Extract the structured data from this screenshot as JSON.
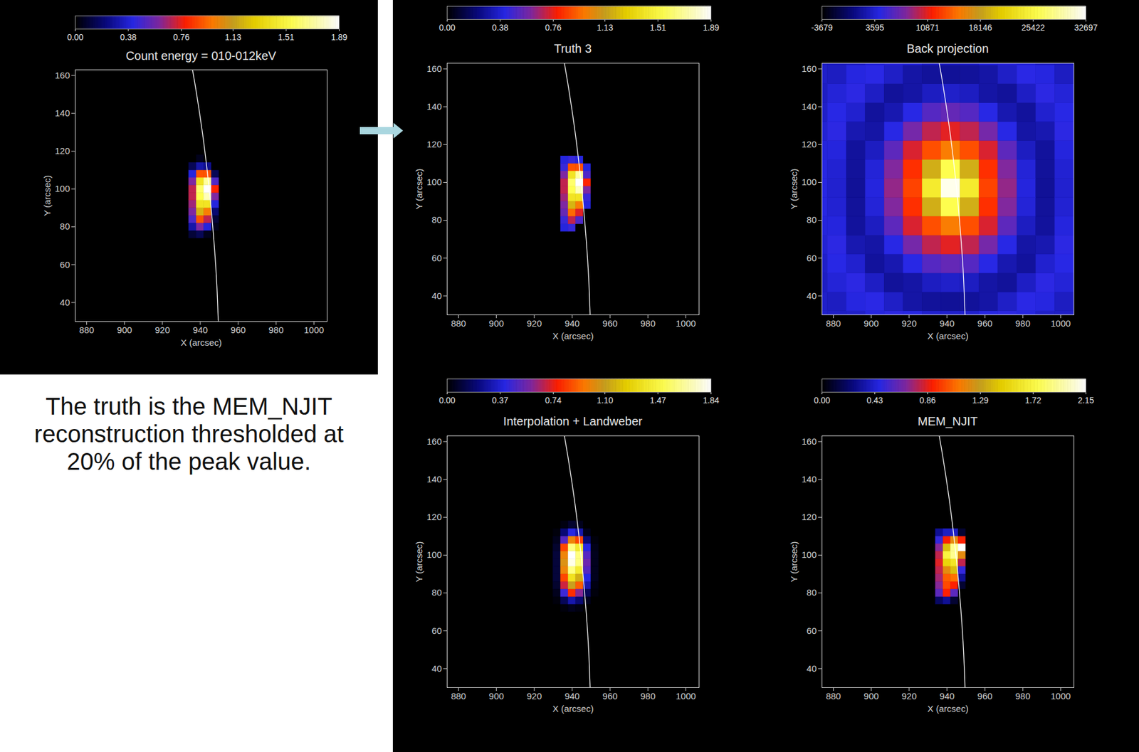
{
  "annotation": "The truth is the MEM_NJIT reconstruction thresholded at 20% of the peak value.",
  "chart_data": [
    {
      "type": "heatmap",
      "title": "Count energy = 010-012keV",
      "x_label": "X (arcsec)",
      "y_label": "Y (arcsec)",
      "xlim": [
        874,
        1007
      ],
      "ylim": [
        30,
        163
      ],
      "xticks": [
        880,
        900,
        920,
        940,
        960,
        980,
        1000
      ],
      "yticks": [
        40,
        60,
        80,
        100,
        120,
        140,
        160
      ],
      "colorbar": {
        "range": [
          0,
          1.89
        ],
        "ticks": [
          {
            "value": 0,
            "label": "0.00"
          },
          0.38,
          0.76,
          1.13,
          1.51,
          1.89
        ]
      },
      "limb": {
        "x": [
          949.5,
          948.7,
          947.4,
          945.7,
          943.6,
          941.1,
          938.1,
          935.9
        ],
        "y": [
          30,
          50,
          70,
          90,
          110,
          130,
          150,
          163
        ]
      },
      "x": [
        932,
        936,
        940,
        944,
        948,
        952
      ],
      "y": [
        72,
        76,
        80,
        84,
        88,
        92,
        96,
        100,
        104,
        108,
        112,
        116
      ],
      "z": [
        [
          0,
          0,
          0,
          0,
          0,
          0
        ],
        [
          0,
          0.1,
          0.15,
          0.05,
          0,
          0
        ],
        [
          0,
          0.3,
          0.6,
          0.4,
          0.05,
          0
        ],
        [
          0,
          0.5,
          0.9,
          0.7,
          0.1,
          0
        ],
        [
          0,
          0.6,
          1.2,
          1.0,
          0.2,
          0
        ],
        [
          0,
          0.65,
          1.4,
          1.4,
          0.4,
          0
        ],
        [
          0,
          0.7,
          1.55,
          1.75,
          0.6,
          0
        ],
        [
          0,
          0.7,
          1.6,
          1.89,
          0.8,
          0
        ],
        [
          0,
          0.6,
          1.4,
          1.7,
          0.5,
          0
        ],
        [
          0,
          0.4,
          0.9,
          0.9,
          0.15,
          0
        ],
        [
          0,
          0.15,
          0.3,
          0.25,
          0,
          0
        ],
        [
          0,
          0,
          0.05,
          0,
          0,
          0
        ]
      ]
    },
    {
      "type": "heatmap",
      "title": "Truth 3",
      "x_label": "X (arcsec)",
      "y_label": "Y (arcsec)",
      "xlim": [
        874,
        1007
      ],
      "ylim": [
        30,
        163
      ],
      "xticks": [
        880,
        900,
        920,
        940,
        960,
        980,
        1000
      ],
      "yticks": [
        40,
        60,
        80,
        100,
        120,
        140,
        160
      ],
      "colorbar": {
        "range": [
          0,
          1.89
        ],
        "ticks": [
          {
            "value": 0,
            "label": "0.00"
          },
          0.38,
          0.76,
          1.13,
          1.51,
          1.89
        ]
      },
      "limb": {
        "x": [
          949.5,
          948.7,
          947.4,
          945.7,
          943.6,
          941.1,
          938.1,
          935.9
        ],
        "y": [
          30,
          50,
          70,
          90,
          110,
          130,
          150,
          163
        ]
      },
      "x": [
        932,
        936,
        940,
        944,
        948,
        952
      ],
      "y": [
        72,
        76,
        80,
        84,
        88,
        92,
        96,
        100,
        104,
        108,
        112,
        116
      ],
      "z": [
        [
          0,
          0,
          0,
          0,
          0,
          0
        ],
        [
          0,
          0.4,
          0.45,
          0,
          0,
          0
        ],
        [
          0,
          0.45,
          0.7,
          0.5,
          0,
          0
        ],
        [
          0,
          0.55,
          0.95,
          0.75,
          0,
          0
        ],
        [
          0,
          0.6,
          1.2,
          1.0,
          0.4,
          0
        ],
        [
          0,
          0.65,
          1.4,
          1.4,
          0.45,
          0
        ],
        [
          0,
          0.7,
          1.55,
          1.75,
          0.6,
          0
        ],
        [
          0,
          0.7,
          1.6,
          1.89,
          0.8,
          0
        ],
        [
          0,
          0.6,
          1.4,
          1.7,
          0.5,
          0
        ],
        [
          0,
          0.45,
          0.9,
          0.9,
          0.4,
          0
        ],
        [
          0,
          0.4,
          0.45,
          0.4,
          0,
          0
        ],
        [
          0,
          0,
          0,
          0,
          0,
          0
        ]
      ]
    },
    {
      "type": "heatmap",
      "title": "Back projection",
      "x_label": "X (arcsec)",
      "y_label": "Y (arcsec)",
      "xlim": [
        874,
        1007
      ],
      "ylim": [
        30,
        163
      ],
      "xticks": [
        880,
        900,
        920,
        940,
        960,
        980,
        1000
      ],
      "yticks": [
        40,
        60,
        80,
        100,
        120,
        140,
        160
      ],
      "colorbar": {
        "range": [
          -3679,
          32697
        ],
        "ticks": [
          -3679,
          3595,
          10871,
          18146,
          25422,
          32697
        ]
      },
      "limb": {
        "x": [
          949.5,
          948.7,
          947.4,
          945.7,
          943.6,
          941.1,
          938.1,
          935.9
        ],
        "y": [
          30,
          50,
          70,
          90,
          110,
          130,
          150,
          163
        ]
      },
      "x": [
        872,
        882,
        892,
        902,
        912,
        922,
        932,
        942,
        952,
        962,
        972,
        982,
        992,
        1002
      ],
      "y": [
        27,
        37,
        47,
        57,
        67,
        77,
        87,
        97,
        107,
        117,
        127,
        137,
        147,
        157,
        167
      ],
      "z": [
        [
          3400,
          3200,
          3300,
          4100,
          4500,
          4200,
          3500,
          3400,
          3500,
          4200,
          4500,
          4100,
          3300,
          3200
        ],
        [
          3300,
          3000,
          4100,
          4400,
          3200,
          2000,
          1600,
          1500,
          1600,
          2000,
          3200,
          4400,
          4100,
          3000
        ],
        [
          3100,
          3800,
          4500,
          3100,
          1600,
          2000,
          3000,
          3300,
          3000,
          2000,
          1600,
          3100,
          4500,
          3800
        ],
        [
          3300,
          4300,
          3500,
          1700,
          2400,
          4300,
          6200,
          6800,
          6200,
          4300,
          2400,
          1700,
          3500,
          4300
        ],
        [
          3700,
          4500,
          2400,
          2000,
          4300,
          7500,
          9800,
          10800,
          9800,
          7500,
          4300,
          2000,
          2400,
          4500
        ],
        [
          4000,
          4000,
          1700,
          3000,
          6500,
          10500,
          13500,
          15500,
          13500,
          10500,
          6500,
          3000,
          1700,
          4000
        ],
        [
          4200,
          3600,
          1600,
          3800,
          8000,
          12200,
          19000,
          26000,
          19000,
          12200,
          8000,
          3800,
          1600,
          3600
        ],
        [
          4200,
          3500,
          1500,
          4000,
          8500,
          13000,
          24000,
          32000,
          24000,
          13000,
          8500,
          4000,
          1500,
          3500
        ],
        [
          4200,
          3600,
          1600,
          3800,
          8000,
          12200,
          19000,
          26000,
          19000,
          12200,
          8000,
          3800,
          1600,
          3600
        ],
        [
          4000,
          4000,
          1700,
          3000,
          6500,
          10500,
          13500,
          15500,
          13500,
          10500,
          6500,
          3000,
          1700,
          4000
        ],
        [
          3700,
          4500,
          2400,
          2000,
          4300,
          7500,
          9800,
          10800,
          9800,
          7500,
          4300,
          2000,
          2400,
          4500
        ],
        [
          3300,
          4300,
          3500,
          1700,
          2400,
          4300,
          6200,
          6800,
          6200,
          4300,
          2400,
          1700,
          3500,
          4300
        ],
        [
          3100,
          3800,
          4500,
          3100,
          1600,
          2000,
          3000,
          3300,
          3000,
          2000,
          1600,
          3100,
          4500,
          3800
        ],
        [
          3300,
          3000,
          4100,
          4400,
          3200,
          2000,
          1600,
          1500,
          1600,
          2000,
          3200,
          4400,
          4100,
          3000
        ],
        [
          3400,
          3200,
          3300,
          4100,
          4500,
          4200,
          3500,
          3400,
          3500,
          4200,
          4500,
          4100,
          3300,
          3200
        ]
      ]
    },
    {
      "type": "heatmap",
      "title": "Interpolation + Landweber",
      "x_label": "X (arcsec)",
      "y_label": "Y (arcsec)",
      "xlim": [
        874,
        1007
      ],
      "ylim": [
        30,
        163
      ],
      "xticks": [
        880,
        900,
        920,
        940,
        960,
        980,
        1000
      ],
      "yticks": [
        40,
        60,
        80,
        100,
        120,
        140,
        160
      ],
      "colorbar": {
        "range": [
          0,
          1.84
        ],
        "ticks": [
          {
            "value": 0,
            "label": "0.00"
          },
          0.37,
          0.74,
          {
            "value": 1.1,
            "label": "1.10"
          },
          1.47,
          1.84
        ]
      },
      "limb": {
        "x": [
          949.5,
          948.7,
          947.4,
          945.7,
          943.6,
          941.1,
          938.1,
          935.9
        ],
        "y": [
          30,
          50,
          70,
          90,
          110,
          130,
          150,
          163
        ]
      },
      "x": [
        932,
        936,
        940,
        944,
        948,
        952
      ],
      "y": [
        72,
        76,
        80,
        84,
        88,
        92,
        96,
        100,
        104,
        108,
        112,
        116
      ],
      "z": [
        [
          0,
          0.02,
          0.05,
          0.03,
          0,
          0
        ],
        [
          0.02,
          0.15,
          0.3,
          0.2,
          0.05,
          0
        ],
        [
          0.05,
          0.45,
          0.8,
          0.6,
          0.15,
          0.02
        ],
        [
          0.08,
          0.7,
          1.1,
          0.9,
          0.3,
          0.03
        ],
        [
          0.1,
          0.85,
          1.35,
          1.15,
          0.4,
          0.05
        ],
        [
          0.1,
          1.0,
          1.6,
          1.4,
          0.5,
          0.05
        ],
        [
          0.1,
          1.05,
          1.8,
          1.6,
          0.55,
          0.05
        ],
        [
          0.1,
          1.0,
          1.84,
          1.6,
          0.5,
          0.05
        ],
        [
          0.08,
          0.85,
          1.6,
          1.4,
          0.4,
          0.04
        ],
        [
          0.05,
          0.5,
          1.0,
          0.85,
          0.2,
          0.02
        ],
        [
          0.02,
          0.2,
          0.4,
          0.3,
          0.05,
          0
        ],
        [
          0,
          0.03,
          0.08,
          0.05,
          0,
          0
        ]
      ]
    },
    {
      "type": "heatmap",
      "title": "MEM_NJIT",
      "x_label": "X (arcsec)",
      "y_label": "Y (arcsec)",
      "xlim": [
        874,
        1007
      ],
      "ylim": [
        30,
        163
      ],
      "xticks": [
        880,
        900,
        920,
        940,
        960,
        980,
        1000
      ],
      "yticks": [
        40,
        60,
        80,
        100,
        120,
        140,
        160
      ],
      "colorbar": {
        "range": [
          0,
          2.15
        ],
        "ticks": [
          {
            "value": 0,
            "label": "0.00"
          },
          0.43,
          0.86,
          1.29,
          1.72,
          2.15
        ]
      },
      "limb": {
        "x": [
          949.5,
          948.7,
          947.4,
          945.7,
          943.6,
          941.1,
          938.1,
          935.9
        ],
        "y": [
          30,
          50,
          70,
          90,
          110,
          130,
          150,
          163
        ]
      },
      "x": [
        932,
        936,
        940,
        944,
        948,
        952
      ],
      "y": [
        72,
        76,
        80,
        84,
        88,
        92,
        96,
        100,
        104,
        108,
        112,
        116
      ],
      "z": [
        [
          0,
          0,
          0,
          0,
          0,
          0
        ],
        [
          0,
          0.2,
          0.3,
          0.1,
          0,
          0
        ],
        [
          0,
          0.6,
          0.9,
          0.6,
          0,
          0
        ],
        [
          0,
          0.7,
          1.0,
          0.9,
          0.1,
          0
        ],
        [
          0,
          0.75,
          1.05,
          1.1,
          0.3,
          0
        ],
        [
          0,
          0.8,
          1.2,
          1.4,
          0.5,
          0
        ],
        [
          0,
          0.85,
          1.5,
          1.6,
          0.8,
          0
        ],
        [
          0,
          0.8,
          1.7,
          1.9,
          1.2,
          0
        ],
        [
          0,
          0.7,
          1.4,
          1.9,
          2.15,
          0
        ],
        [
          0,
          0.5,
          0.9,
          1.2,
          0.9,
          0
        ],
        [
          0,
          0.3,
          0.4,
          0.4,
          0.1,
          0
        ],
        [
          0,
          0,
          0,
          0,
          0,
          0
        ]
      ]
    }
  ]
}
